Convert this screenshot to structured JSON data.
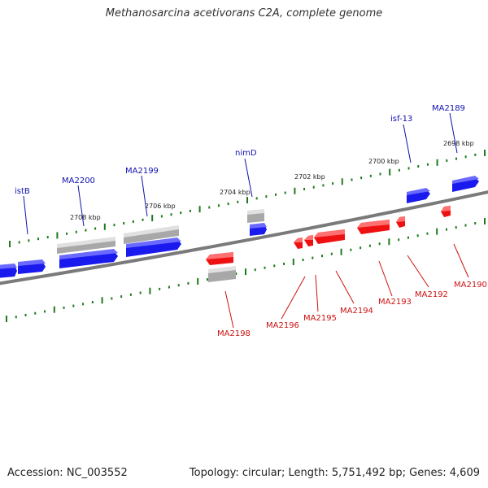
{
  "title": "Methanosarcina acetivorans C2A, complete genome",
  "footer": {
    "accession": "Accession: NC_003552",
    "summary": "Topology: circular; Length: 5,751,492 bp; Genes: 4,609"
  },
  "colors": {
    "forward": "#1a1aee",
    "reverse": "#ee1111",
    "gray": "#b8b8b8",
    "tick": "#1e7a1e",
    "backbone": "#808080",
    "forward_label": "#1010b0",
    "reverse_label": "#cc1111"
  },
  "scale_labels": [
    "2708 kbp",
    "2706 kbp",
    "2704 kbp",
    "2702 kbp",
    "2700 kbp",
    "2698 kbp"
  ],
  "forward_genes": [
    "istB",
    "MA2200",
    "MA2199",
    "nimD",
    "isf-13",
    "MA2189"
  ],
  "reverse_genes": [
    "MA2198",
    "MA2196",
    "MA2195",
    "MA2194",
    "MA2193",
    "MA2192",
    "MA2190"
  ]
}
